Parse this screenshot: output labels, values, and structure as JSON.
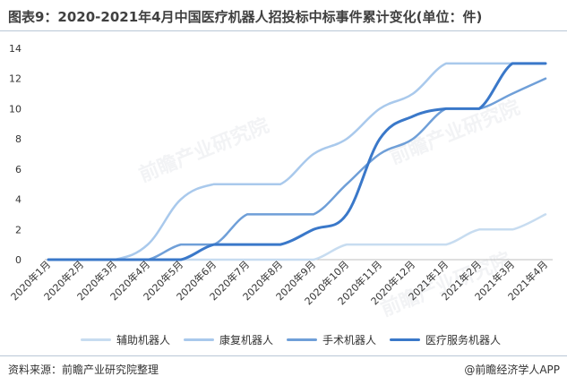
{
  "title": "图表9：2020-2021年4月中国医疗机器人招投标中标事件累计变化(单位：件)",
  "source": "资料来源：前瞻产业研究院整理",
  "brand": "@前瞻经济学人APP",
  "watermark": "前瞻产业研究院",
  "chart_data": {
    "type": "line",
    "categories": [
      "2020年1月",
      "2020年2月",
      "2020年3月",
      "2020年4月",
      "2020年5月",
      "2020年6月",
      "2020年7月",
      "2020年8月",
      "2020年9月",
      "2020年10月",
      "2020年11月",
      "2020年12月",
      "2021年1月",
      "2021年2月",
      "2021年3月",
      "2021年4月"
    ],
    "ylim": [
      0,
      14
    ],
    "yticks": [
      0,
      2,
      4,
      6,
      8,
      10,
      12,
      14
    ],
    "grid": false,
    "legend": "bottom",
    "series": [
      {
        "name": "辅助机器人",
        "color": "#c7dcf0",
        "width": 2.5,
        "values": [
          0,
          0,
          0,
          0,
          0,
          0,
          0,
          0,
          0,
          1,
          1,
          1,
          1,
          2,
          2,
          3
        ]
      },
      {
        "name": "康复机器人",
        "color": "#a9c9ec",
        "width": 2.5,
        "values": [
          0,
          0,
          0,
          1,
          4,
          5,
          5,
          5,
          7,
          8,
          10,
          11,
          13,
          13,
          13,
          13
        ]
      },
      {
        "name": "手术机器人",
        "color": "#6f9fd8",
        "width": 2.5,
        "values": [
          0,
          0,
          0,
          0,
          1,
          1,
          3,
          3,
          3,
          5,
          7,
          8,
          10,
          10,
          11,
          12
        ]
      },
      {
        "name": "医疗服务机器人",
        "color": "#3a78c9",
        "width": 3,
        "values": [
          0,
          0,
          0,
          0,
          0,
          1,
          1,
          1,
          2,
          3,
          8,
          9.5,
          10,
          10,
          13,
          13
        ]
      }
    ]
  }
}
